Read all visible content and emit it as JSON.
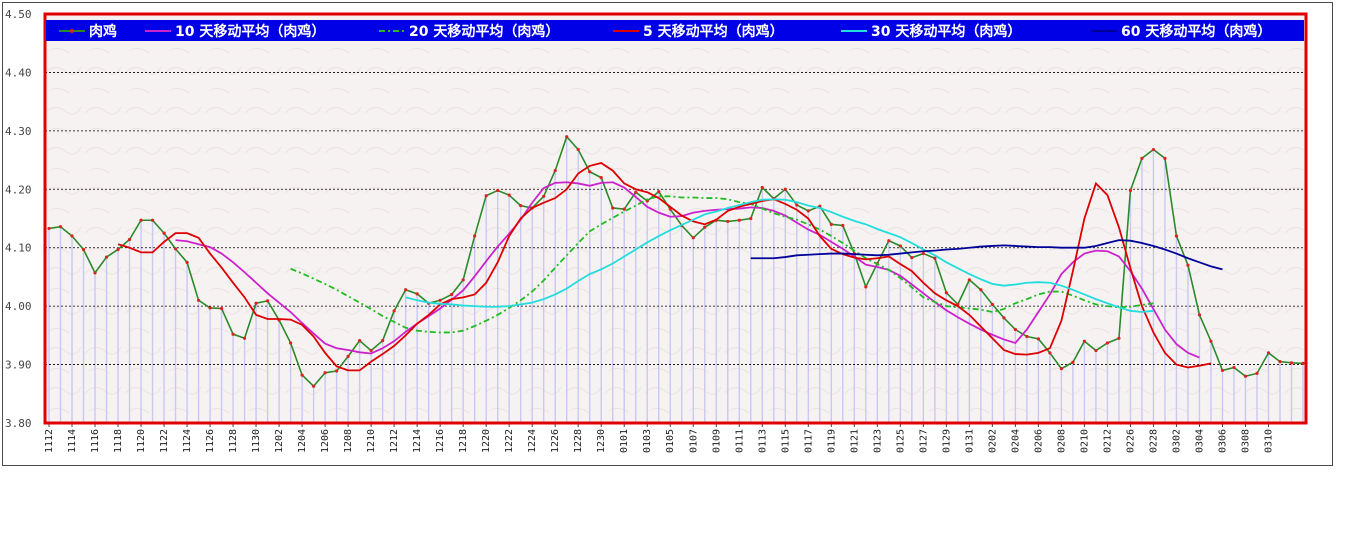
{
  "chart_data": {
    "type": "line",
    "ylim": [
      3.8,
      4.5
    ],
    "y_ticks": [
      "4.50",
      "4.40",
      "4.30",
      "4.20",
      "4.10",
      "4.00",
      "3.90",
      "3.80"
    ],
    "y_tick_values": [
      4.5,
      4.4,
      4.3,
      4.2,
      4.1,
      4.0,
      3.9,
      3.8
    ],
    "x_tick_labels": [
      "1112",
      "1114",
      "1116",
      "1118",
      "1120",
      "1122",
      "1124",
      "1126",
      "1128",
      "1130",
      "1202",
      "1204",
      "1206",
      "1208",
      "1210",
      "1212",
      "1214",
      "1216",
      "1218",
      "1220",
      "1222",
      "1224",
      "1226",
      "1228",
      "1230",
      "0101",
      "0103",
      "0105",
      "0107",
      "0109",
      "0111",
      "0113",
      "0115",
      "0117",
      "0119",
      "0121",
      "0123",
      "0125",
      "0127",
      "0129",
      "0131",
      "0202",
      "0204",
      "0206",
      "0208",
      "0210",
      "0212",
      "0226",
      "0228",
      "0302",
      "0304",
      "0306",
      "0308",
      "0310"
    ],
    "grid": true,
    "legend_position": "top",
    "colors": {
      "border": "#e00000",
      "legend_bg": "#0000e6",
      "bars": "#c8c8f4",
      "grid": "#000000",
      "background": "#f7f2f2"
    },
    "series": [
      {
        "name": "肉鸡",
        "color": "#2a8a2a",
        "marker_color": "#dd2222",
        "values": [
          4.133,
          4.136,
          4.12,
          4.097,
          4.057,
          4.084,
          4.097,
          4.114,
          4.147,
          4.147,
          4.125,
          4.098,
          4.075,
          4.01,
          3.997,
          3.996,
          3.952,
          3.945,
          4.005,
          4.009,
          3.976,
          3.937,
          3.882,
          3.863,
          3.886,
          3.889,
          3.914,
          3.941,
          3.924,
          3.941,
          3.992,
          4.028,
          4.021,
          4.005,
          4.01,
          4.02,
          4.045,
          4.12,
          4.189,
          4.198,
          4.19,
          4.172,
          4.168,
          4.188,
          4.232,
          4.29,
          4.268,
          4.23,
          4.22,
          4.168,
          4.166,
          4.195,
          4.18,
          4.196,
          4.166,
          4.138,
          4.117,
          4.135,
          4.147,
          4.145,
          4.147,
          4.15,
          4.203,
          4.184,
          4.2,
          4.173,
          4.163,
          4.171,
          4.14,
          4.138,
          4.09,
          4.033,
          4.073,
          4.112,
          4.103,
          4.083,
          4.09,
          4.082,
          4.023,
          4.003,
          4.045,
          4.028,
          4.003,
          3.98,
          3.96,
          3.948,
          3.944,
          3.92,
          3.893,
          3.904,
          3.94,
          3.924,
          3.937,
          3.945,
          4.198,
          4.253,
          4.268,
          4.253,
          4.12,
          4.07,
          3.985,
          3.94,
          3.89,
          3.895,
          3.88,
          3.885,
          3.92,
          3.905,
          3.903,
          3.902
        ]
      },
      {
        "name": "10 天移动平均（肉鸡）",
        "color": "#cc22cc",
        "start": 11,
        "values": [
          4.113,
          4.111,
          4.106,
          4.101,
          4.09,
          4.075,
          4.058,
          4.04,
          4.022,
          4.006,
          3.99,
          3.971,
          3.953,
          3.936,
          3.928,
          3.925,
          3.921,
          3.919,
          3.928,
          3.94,
          3.956,
          3.97,
          3.983,
          3.996,
          4.011,
          4.027,
          4.051,
          4.077,
          4.102,
          4.124,
          4.148,
          4.177,
          4.202,
          4.211,
          4.212,
          4.21,
          4.206,
          4.211,
          4.212,
          4.203,
          4.187,
          4.17,
          4.16,
          4.153,
          4.154,
          4.16,
          4.163,
          4.165,
          4.166,
          4.167,
          4.169,
          4.168,
          4.163,
          4.155,
          4.143,
          4.131,
          4.122,
          4.11,
          4.098,
          4.085,
          4.071,
          4.067,
          4.062,
          4.052,
          4.037,
          4.022,
          4.007,
          3.993,
          3.981,
          3.97,
          3.96,
          3.951,
          3.943,
          3.937,
          3.96,
          3.99,
          4.02,
          4.055,
          4.075,
          4.09,
          4.095,
          4.094,
          4.085,
          4.06,
          4.03,
          3.995,
          3.96,
          3.935,
          3.92,
          3.912
        ]
      },
      {
        "name": "20 天移动平均（肉鸡）",
        "color": "#22bb22",
        "dash": "6,3,2,3",
        "start": 21,
        "values": [
          4.064,
          4.056,
          4.047,
          4.038,
          4.028,
          4.017,
          4.006,
          3.995,
          3.983,
          3.973,
          3.963,
          3.958,
          3.956,
          3.955,
          3.955,
          3.958,
          3.966,
          3.975,
          3.985,
          3.997,
          4.01,
          4.025,
          4.044,
          4.066,
          4.087,
          4.108,
          4.128,
          4.14,
          4.151,
          4.162,
          4.172,
          4.183,
          4.188,
          4.188,
          4.186,
          4.186,
          4.185,
          4.185,
          4.183,
          4.178,
          4.175,
          4.167,
          4.159,
          4.153,
          4.148,
          4.14,
          4.131,
          4.12,
          4.108,
          4.095,
          4.082,
          4.072,
          4.062,
          4.048,
          4.032,
          4.015,
          4.007,
          4.0,
          3.998,
          3.996,
          3.994,
          3.99,
          3.995,
          4.005,
          4.012,
          4.02,
          4.025,
          4.025,
          4.018,
          4.01,
          4.003,
          4.0,
          3.998,
          3.999,
          4.002,
          4.005
        ]
      },
      {
        "name": "5 天移动平均（肉鸡）",
        "color": "#dd0000",
        "start": 6,
        "values": [
          4.106,
          4.1,
          4.092,
          4.092,
          4.11,
          4.125,
          4.125,
          4.117,
          4.09,
          4.066,
          4.04,
          4.015,
          3.985,
          3.978,
          3.978,
          3.977,
          3.968,
          3.948,
          3.92,
          3.897,
          3.89,
          3.89,
          3.905,
          3.918,
          3.932,
          3.95,
          3.97,
          3.985,
          4.003,
          4.012,
          4.015,
          4.02,
          4.04,
          4.075,
          4.12,
          4.15,
          4.168,
          4.177,
          4.185,
          4.2,
          4.227,
          4.24,
          4.245,
          4.232,
          4.21,
          4.2,
          4.195,
          4.185,
          4.17,
          4.155,
          4.145,
          4.14,
          4.148,
          4.163,
          4.17,
          4.175,
          4.18,
          4.183,
          4.175,
          4.165,
          4.15,
          4.12,
          4.098,
          4.089,
          4.083,
          4.08,
          4.082,
          4.085,
          4.072,
          4.06,
          4.04,
          4.022,
          4.01,
          4.0,
          3.985,
          3.965,
          3.945,
          3.925,
          3.918,
          3.917,
          3.92,
          3.928,
          3.975,
          4.06,
          4.15,
          4.21,
          4.19,
          4.135,
          4.065,
          4.0,
          3.955,
          3.92,
          3.9,
          3.895,
          3.898,
          3.902
        ]
      },
      {
        "name": "30 天移动平均（肉鸡）",
        "color": "#22dddd",
        "start": 31,
        "values": [
          4.015,
          4.01,
          4.006,
          4.004,
          4.003,
          4.001,
          4.0,
          3.999,
          3.999,
          4.0,
          4.003,
          4.006,
          4.012,
          4.02,
          4.03,
          4.043,
          4.055,
          4.063,
          4.073,
          4.085,
          4.097,
          4.109,
          4.12,
          4.13,
          4.139,
          4.148,
          4.157,
          4.162,
          4.168,
          4.173,
          4.178,
          4.182,
          4.183,
          4.182,
          4.178,
          4.172,
          4.168,
          4.161,
          4.153,
          4.146,
          4.14,
          4.132,
          4.125,
          4.118,
          4.108,
          4.097,
          4.087,
          4.075,
          4.065,
          4.055,
          4.046,
          4.038,
          4.035,
          4.037,
          4.04,
          4.041,
          4.04,
          4.035,
          4.028,
          4.02,
          4.012,
          4.005,
          3.998,
          3.992,
          3.99,
          3.992
        ]
      },
      {
        "name": "60 天移动平均（肉鸡）",
        "color": "#000099",
        "start": 61,
        "values": [
          4.082,
          4.082,
          4.082,
          4.084,
          4.087,
          4.088,
          4.089,
          4.09,
          4.09,
          4.089,
          4.088,
          4.087,
          4.088,
          4.09,
          4.092,
          4.094,
          4.095,
          4.097,
          4.098,
          4.1,
          4.102,
          4.103,
          4.104,
          4.103,
          4.102,
          4.101,
          4.101,
          4.1,
          4.1,
          4.1,
          4.103,
          4.108,
          4.113,
          4.112,
          4.108,
          4.103,
          4.097,
          4.09,
          4.082,
          4.075,
          4.068,
          4.063
        ]
      }
    ]
  }
}
